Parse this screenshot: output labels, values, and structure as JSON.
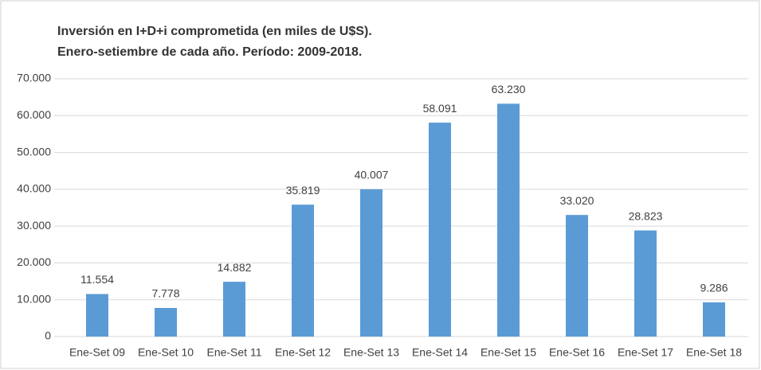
{
  "chart_data": {
    "type": "bar",
    "title": "Inversión en I+D+i comprometida (en miles de U$S).",
    "subtitle": "Enero-setiembre de cada año. Período: 2009-2018.",
    "categories": [
      "Ene-Set 09",
      "Ene-Set 10",
      "Ene-Set 11",
      "Ene-Set 12",
      "Ene-Set 13",
      "Ene-Set 14",
      "Ene-Set 15",
      "Ene-Set 16",
      "Ene-Set 17",
      "Ene-Set 18"
    ],
    "values": [
      11554,
      7778,
      14882,
      35819,
      40007,
      58091,
      63230,
      33020,
      28823,
      9286
    ],
    "value_labels": [
      "11.554",
      "7.778",
      "14.882",
      "35.819",
      "40.007",
      "58.091",
      "63.230",
      "33.020",
      "28.823",
      "9.286"
    ],
    "color": "#5b9bd5",
    "ylim": [
      0,
      70000
    ],
    "yticks": [
      0,
      {
        "value": 10000,
        "label": "10.000"
      },
      {
        "value": 20000,
        "label": "20.000"
      },
      {
        "value": 30000,
        "label": "30.000"
      },
      {
        "value": 40000,
        "label": "40.000"
      },
      {
        "value": 50000,
        "label": "50.000"
      },
      {
        "value": 60000,
        "label": "60.000"
      },
      {
        "value": 70000,
        "label": "70.000"
      }
    ],
    "grid": true
  }
}
